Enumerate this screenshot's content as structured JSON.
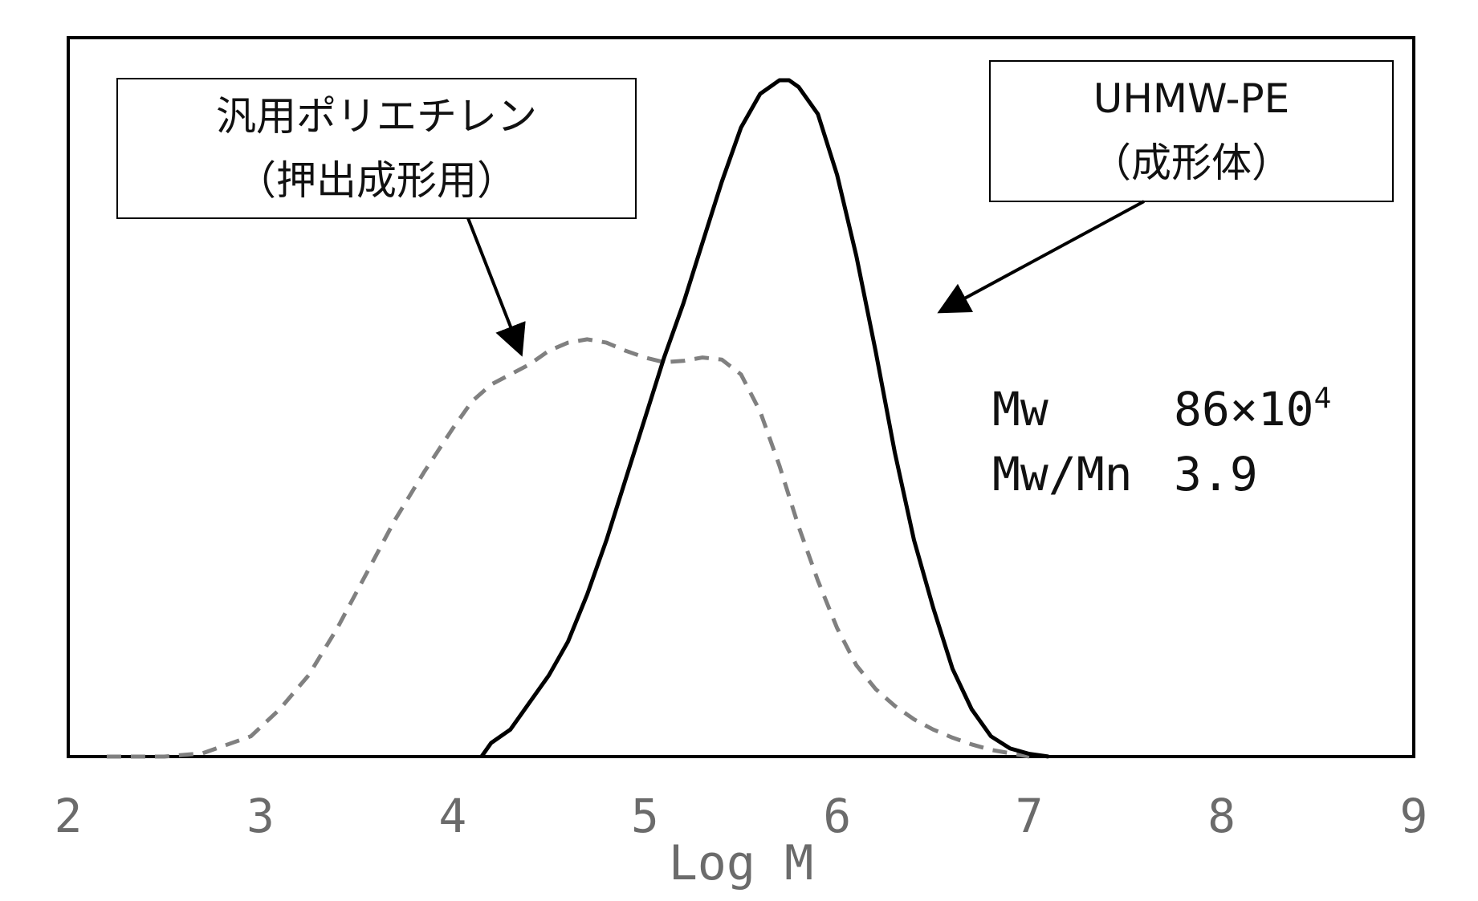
{
  "chart_data": {
    "type": "line",
    "xlabel": "Log M",
    "xlim": [
      2,
      9
    ],
    "x_ticks": [
      "2",
      "3",
      "4",
      "5",
      "6",
      "7",
      "8",
      "9"
    ],
    "ylim": [
      0,
      1.05
    ],
    "grid": false,
    "series": [
      {
        "style": "dashed",
        "color": "#808080",
        "points": [
          [
            2.2,
            0.0
          ],
          [
            2.5,
            0.0
          ],
          [
            2.7,
            0.005
          ],
          [
            2.8,
            0.015
          ],
          [
            2.95,
            0.03
          ],
          [
            3.1,
            0.07
          ],
          [
            3.25,
            0.12
          ],
          [
            3.4,
            0.19
          ],
          [
            3.55,
            0.27
          ],
          [
            3.7,
            0.35
          ],
          [
            3.85,
            0.42
          ],
          [
            4.0,
            0.485
          ],
          [
            4.1,
            0.525
          ],
          [
            4.2,
            0.55
          ],
          [
            4.3,
            0.565
          ],
          [
            4.4,
            0.58
          ],
          [
            4.5,
            0.6
          ],
          [
            4.6,
            0.612
          ],
          [
            4.7,
            0.617
          ],
          [
            4.8,
            0.612
          ],
          [
            4.9,
            0.6
          ],
          [
            5.0,
            0.59
          ],
          [
            5.1,
            0.583
          ],
          [
            5.2,
            0.585
          ],
          [
            5.3,
            0.59
          ],
          [
            5.4,
            0.587
          ],
          [
            5.5,
            0.565
          ],
          [
            5.6,
            0.51
          ],
          [
            5.7,
            0.43
          ],
          [
            5.8,
            0.34
          ],
          [
            5.9,
            0.26
          ],
          [
            6.0,
            0.19
          ],
          [
            6.1,
            0.135
          ],
          [
            6.2,
            0.1
          ],
          [
            6.3,
            0.075
          ],
          [
            6.4,
            0.055
          ],
          [
            6.5,
            0.04
          ],
          [
            6.6,
            0.028
          ],
          [
            6.7,
            0.018
          ],
          [
            6.8,
            0.01
          ],
          [
            6.9,
            0.005
          ],
          [
            7.0,
            0.0
          ]
        ]
      },
      {
        "style": "solid",
        "color": "#000000",
        "points": [
          [
            4.15,
            0.0
          ],
          [
            4.2,
            0.02
          ],
          [
            4.3,
            0.04
          ],
          [
            4.4,
            0.08
          ],
          [
            4.5,
            0.12
          ],
          [
            4.6,
            0.17
          ],
          [
            4.7,
            0.24
          ],
          [
            4.8,
            0.32
          ],
          [
            4.9,
            0.41
          ],
          [
            5.0,
            0.5
          ],
          [
            5.1,
            0.59
          ],
          [
            5.2,
            0.67
          ],
          [
            5.3,
            0.76
          ],
          [
            5.4,
            0.85
          ],
          [
            5.5,
            0.93
          ],
          [
            5.6,
            0.98
          ],
          [
            5.7,
            1.0
          ],
          [
            5.75,
            1.0
          ],
          [
            5.8,
            0.99
          ],
          [
            5.9,
            0.95
          ],
          [
            6.0,
            0.86
          ],
          [
            6.1,
            0.74
          ],
          [
            6.2,
            0.6
          ],
          [
            6.3,
            0.45
          ],
          [
            6.4,
            0.32
          ],
          [
            6.5,
            0.22
          ],
          [
            6.6,
            0.13
          ],
          [
            6.7,
            0.07
          ],
          [
            6.8,
            0.03
          ],
          [
            6.9,
            0.012
          ],
          [
            7.0,
            0.004
          ],
          [
            7.1,
            0.0
          ]
        ]
      }
    ],
    "annotations": [
      {
        "id": "general",
        "lines": [
          "汎用ポリエチレン",
          "（押出成形用）"
        ],
        "arrow_to": [
          4.35,
          0.6
        ]
      },
      {
        "id": "uhmw",
        "lines": [
          "UHMW-PE",
          "（成形体）"
        ],
        "arrow_to": [
          6.55,
          0.66
        ]
      }
    ],
    "stats": [
      {
        "label": "Mw",
        "value": "86×10",
        "superscript": "4"
      },
      {
        "label": "Mw/Mn",
        "value": "3.9"
      }
    ]
  }
}
